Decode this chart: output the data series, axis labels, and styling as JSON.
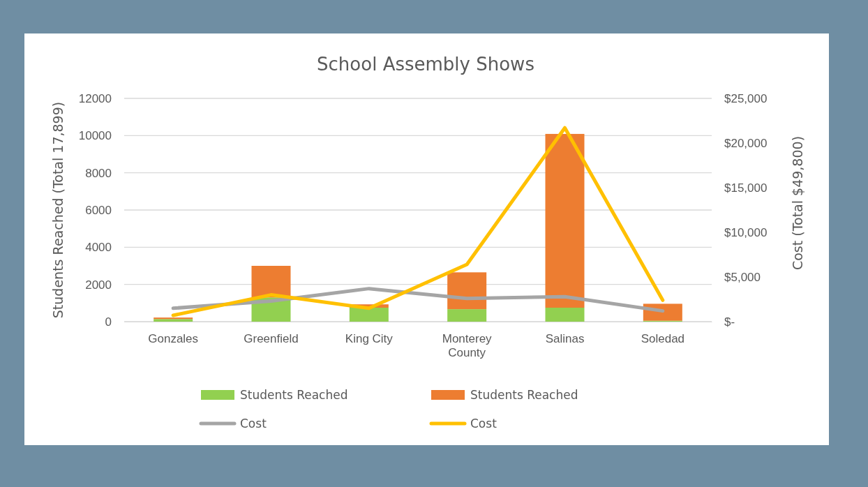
{
  "chart_data": {
    "type": "bar",
    "title": "School Assembly Shows",
    "ylabel": "Students Reached (Total 17,899)",
    "y2label": "Cost (Total $49,800)",
    "categories": [
      "Gonzales",
      "Greenfield",
      "King City",
      "Monterey County",
      "Salinas",
      "Soledad"
    ],
    "stacked": true,
    "series": [
      {
        "name": "Students Reached",
        "color": "#92d050",
        "values": [
          140,
          1300,
          750,
          670,
          750,
          50
        ]
      },
      {
        "name": "Students Reached",
        "color": "#ed7d31",
        "values": [
          80,
          1700,
          180,
          1980,
          9340,
          910
        ]
      },
      {
        "type": "line",
        "axis": "y2",
        "name": "Cost",
        "color": "#a5a5a5",
        "values": [
          1500,
          2300,
          3700,
          2600,
          2800,
          1200
        ]
      },
      {
        "type": "line",
        "axis": "y2",
        "name": "Cost",
        "color": "#ffc000",
        "values": [
          700,
          3000,
          1500,
          6400,
          21700,
          2400
        ]
      }
    ],
    "ylim": [
      0,
      12000
    ],
    "yticks": [
      0,
      2000,
      4000,
      6000,
      8000,
      10000,
      12000
    ],
    "y2lim": [
      0,
      25000
    ],
    "y2ticks": [
      {
        "value": 0,
        "label": "$-"
      },
      {
        "value": 5000,
        "label": "$5,000"
      },
      {
        "value": 10000,
        "label": "$10,000"
      },
      {
        "value": 15000,
        "label": "$15,000"
      },
      {
        "value": 20000,
        "label": "$20,000"
      },
      {
        "value": 25000,
        "label": "$25,000"
      }
    ],
    "grid": "y",
    "legend": "bottom"
  }
}
